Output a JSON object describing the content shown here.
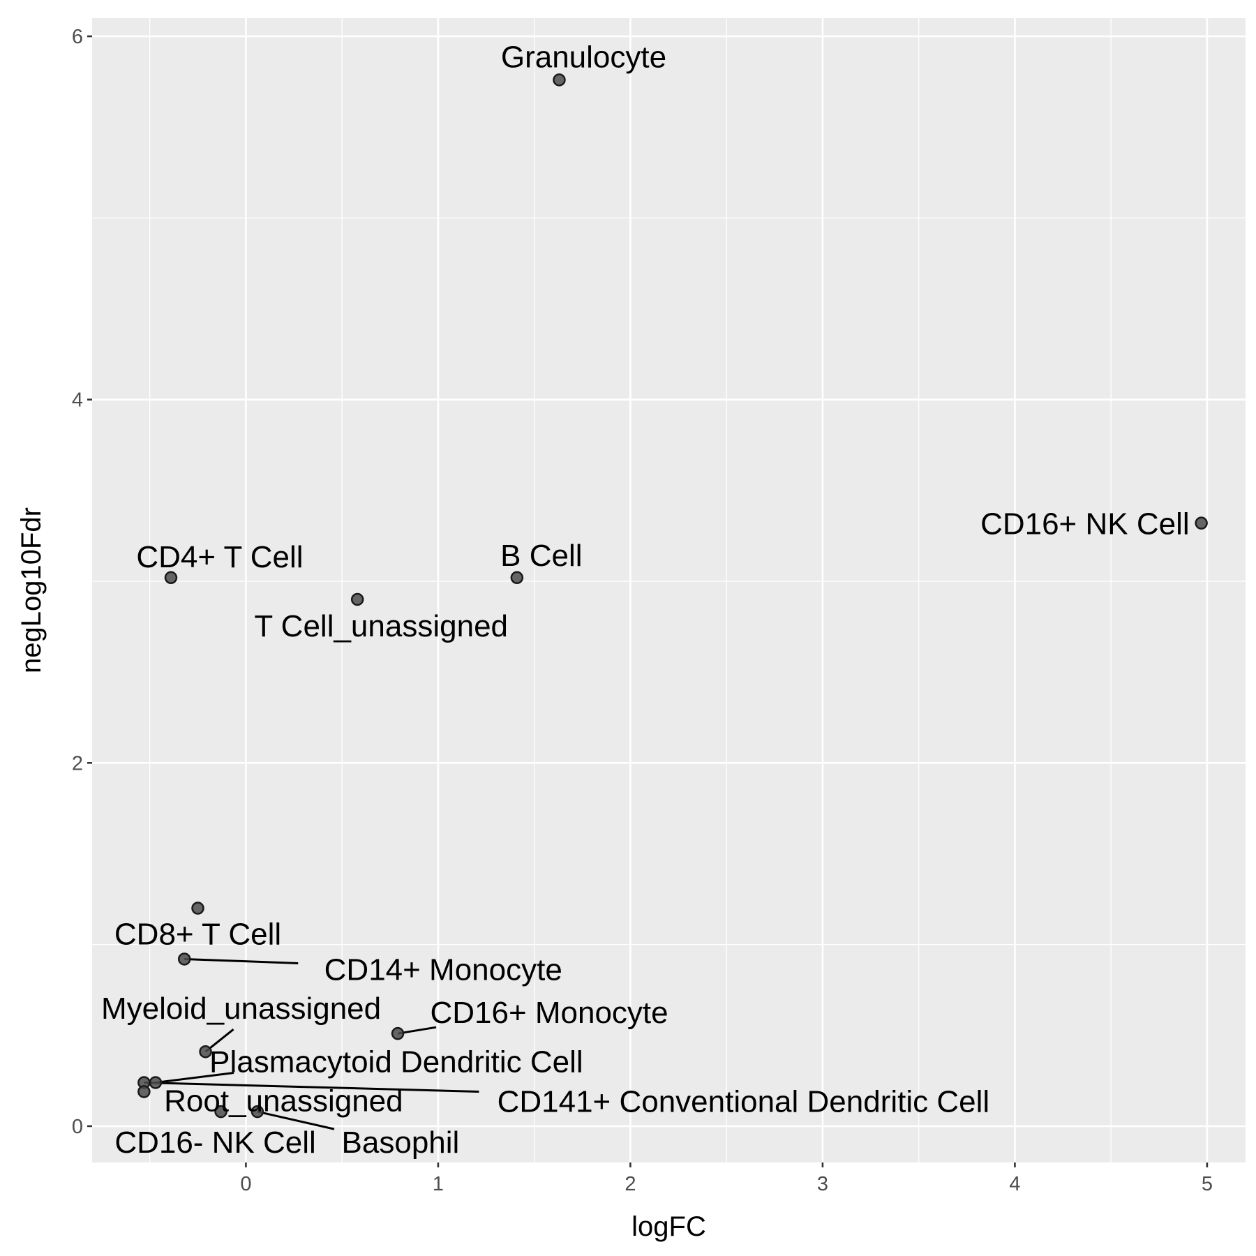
{
  "chart_data": {
    "type": "scatter",
    "title": "",
    "xlabel": "logFC",
    "ylabel": "negLog10Fdr",
    "xlim": [
      -0.8,
      5.2
    ],
    "ylim": [
      -0.2,
      6.1
    ],
    "x_ticks": [
      0,
      1,
      2,
      3,
      4,
      5
    ],
    "y_ticks": [
      0,
      2,
      4,
      6
    ],
    "grid": true,
    "legend": "none",
    "point_color": "#4d4d4d",
    "point_edge_color": "#1a1a1a",
    "panel_background": "#ebebeb",
    "points": [
      {
        "label": "Granulocyte",
        "x": 1.63,
        "y": 5.76
      },
      {
        "label": "CD16+ NK Cell",
        "x": 4.97,
        "y": 3.32
      },
      {
        "label": "CD4+ T Cell",
        "x": -0.39,
        "y": 3.02
      },
      {
        "label": "B Cell",
        "x": 1.41,
        "y": 3.02
      },
      {
        "label": "T Cell_unassigned",
        "x": 0.58,
        "y": 2.9
      },
      {
        "label": "CD8+ T Cell",
        "x": -0.25,
        "y": 1.2
      },
      {
        "label": "CD14+ Monocyte",
        "x": -0.32,
        "y": 0.92
      },
      {
        "label": "CD16+ Monocyte",
        "x": 0.79,
        "y": 0.51
      },
      {
        "label": "Myeloid_unassigned",
        "x": -0.21,
        "y": 0.41
      },
      {
        "label": "Plasmacytoid Dendritic Cell",
        "x": -0.47,
        "y": 0.24
      },
      {
        "label": "CD141+ Conventional Dendritic Cell",
        "x": -0.53,
        "y": 0.24
      },
      {
        "label": "Root_unassigned",
        "x": -0.53,
        "y": 0.19
      },
      {
        "label": "CD16- NK Cell",
        "x": -0.13,
        "y": 0.08
      },
      {
        "label": "Basophil",
        "x": 0.06,
        "y": 0.08
      }
    ]
  }
}
